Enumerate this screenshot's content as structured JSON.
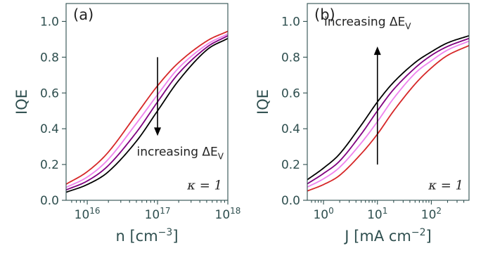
{
  "chart_data": [
    {
      "type": "line",
      "panel_label": "(a)",
      "xlabel": "n [cm",
      "xlabel_sup": "−3",
      "xlabel_tail": "]",
      "ylabel": "IQE",
      "xscale": "log",
      "xlim": [
        5000000000000000.0,
        1e+18
      ],
      "ylim": [
        0,
        1.1
      ],
      "x_ticks": [
        {
          "value": 1e+16,
          "base": "10",
          "exp": "16"
        },
        {
          "value": 1e+17,
          "base": "10",
          "exp": "17"
        },
        {
          "value": 1e+18,
          "base": "10",
          "exp": "18"
        }
      ],
      "y_ticks": [
        {
          "value": 0.0,
          "label": "0.0"
        },
        {
          "value": 0.2,
          "label": "0.2"
        },
        {
          "value": 0.4,
          "label": "0.4"
        },
        {
          "value": 0.6,
          "label": "0.6"
        },
        {
          "value": 0.8,
          "label": "0.8"
        },
        {
          "value": 1.0,
          "label": "1.0"
        }
      ],
      "annotation": {
        "text": "increasing ΔE",
        "sub": "V",
        "arrow": "down",
        "x": 1e+17,
        "y_from": 0.8,
        "y_to": 0.36
      },
      "kappa_label": "κ = 1",
      "series": [
        {
          "color": "#d62728",
          "x": [
            5000000000000000.0,
            1e+16,
            2e+16,
            5e+16,
            1e+17,
            2e+17,
            5e+17,
            1e+18
          ],
          "y": [
            0.09,
            0.16,
            0.27,
            0.48,
            0.64,
            0.77,
            0.89,
            0.945
          ]
        },
        {
          "color": "#ee82ee",
          "x": [
            5000000000000000.0,
            1e+16,
            2e+16,
            5e+16,
            1e+17,
            2e+17,
            5e+17,
            1e+18
          ],
          "y": [
            0.072,
            0.13,
            0.23,
            0.43,
            0.59,
            0.74,
            0.87,
            0.93
          ]
        },
        {
          "color": "#800080",
          "x": [
            5000000000000000.0,
            1e+16,
            2e+16,
            5e+16,
            1e+17,
            2e+17,
            5e+17,
            1e+18
          ],
          "y": [
            0.058,
            0.108,
            0.195,
            0.38,
            0.55,
            0.71,
            0.855,
            0.92
          ]
        },
        {
          "color": "#000000",
          "x": [
            5000000000000000.0,
            1e+16,
            2e+16,
            5e+16,
            1e+17,
            2e+17,
            5e+17,
            1e+18
          ],
          "y": [
            0.045,
            0.088,
            0.16,
            0.33,
            0.5,
            0.67,
            0.84,
            0.905
          ]
        }
      ]
    },
    {
      "type": "line",
      "panel_label": "(b)",
      "xlabel": "J [mA cm",
      "xlabel_sup": "−2",
      "xlabel_tail": "]",
      "ylabel": "IQE",
      "xscale": "log",
      "xlim": [
        0.5,
        500
      ],
      "ylim": [
        0,
        1.1
      ],
      "x_ticks": [
        {
          "value": 1,
          "base": "10",
          "exp": "0"
        },
        {
          "value": 10,
          "base": "10",
          "exp": "1"
        },
        {
          "value": 100,
          "base": "10",
          "exp": "2"
        }
      ],
      "y_ticks": [
        {
          "value": 0.0,
          "label": "0.0"
        },
        {
          "value": 0.2,
          "label": "0.2"
        },
        {
          "value": 0.4,
          "label": "0.4"
        },
        {
          "value": 0.6,
          "label": "0.6"
        },
        {
          "value": 0.8,
          "label": "0.8"
        },
        {
          "value": 1.0,
          "label": "1.0"
        }
      ],
      "annotation": {
        "text": "increasing ΔE",
        "sub": "V",
        "arrow": "up",
        "x": 10,
        "y_from": 0.2,
        "y_to": 0.86
      },
      "kappa_label": "κ = 1",
      "series": [
        {
          "color": "#000000",
          "x": [
            0.5,
            1,
            2,
            5,
            10,
            20,
            50,
            100,
            200,
            500
          ],
          "y": [
            0.115,
            0.18,
            0.26,
            0.42,
            0.55,
            0.66,
            0.77,
            0.83,
            0.88,
            0.92
          ]
        },
        {
          "color": "#800080",
          "x": [
            0.5,
            1,
            2,
            5,
            10,
            20,
            50,
            100,
            200,
            500
          ],
          "y": [
            0.092,
            0.15,
            0.22,
            0.37,
            0.5,
            0.62,
            0.74,
            0.81,
            0.86,
            0.905
          ]
        },
        {
          "color": "#ee82ee",
          "x": [
            0.5,
            1,
            2,
            5,
            10,
            20,
            50,
            100,
            200,
            500
          ],
          "y": [
            0.074,
            0.12,
            0.185,
            0.32,
            0.44,
            0.57,
            0.71,
            0.78,
            0.84,
            0.89
          ]
        },
        {
          "color": "#d62728",
          "x": [
            0.5,
            1,
            2,
            5,
            10,
            20,
            50,
            100,
            200,
            500
          ],
          "y": [
            0.052,
            0.088,
            0.14,
            0.26,
            0.37,
            0.5,
            0.65,
            0.74,
            0.81,
            0.865
          ]
        }
      ]
    }
  ]
}
